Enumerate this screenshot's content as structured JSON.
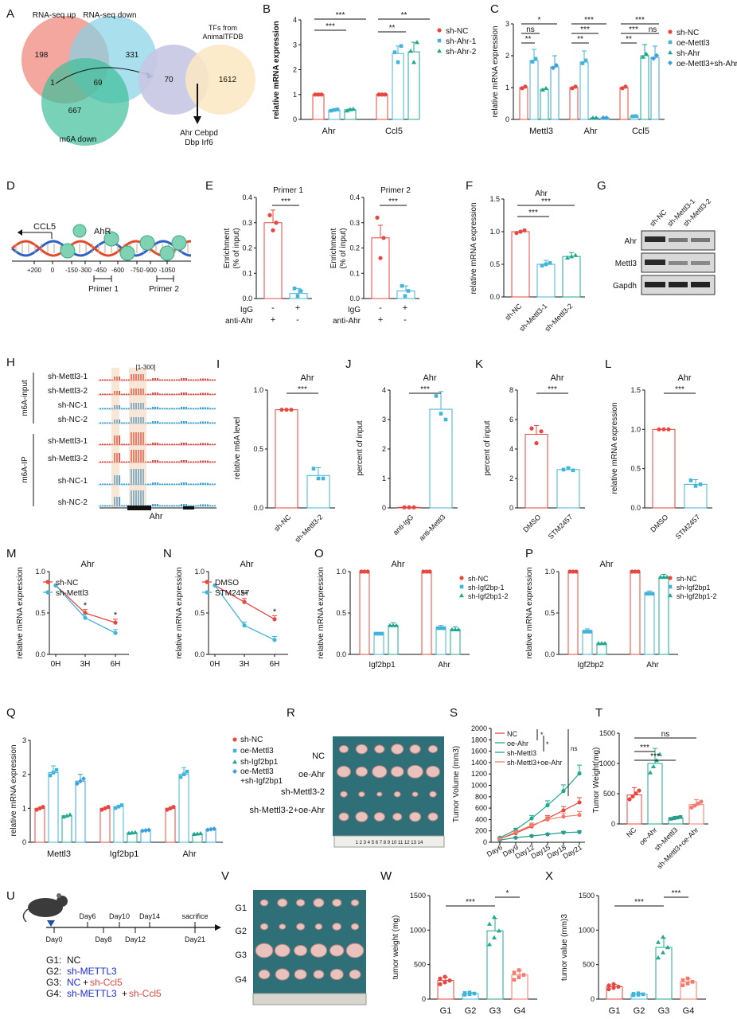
{
  "colors": {
    "red": "#e8473f",
    "cyan": "#41b4d8",
    "teal": "#1ea98f",
    "blue": "#1f2de0",
    "sky": "#3aa0dc",
    "orange": "#f0c7a6"
  },
  "panels": {
    "A": {
      "letter": "A",
      "set_up": "RNA-seq up",
      "set_down": "RNA-seq down",
      "set_m6a": "m6A down",
      "n_up": "198",
      "n_down": "331",
      "n_center": "1",
      "n_overlap": "69",
      "n_m6a": "667",
      "tf_title_1": "TFs from",
      "tf_title_2": "AnimalTFDB",
      "n_tf_overlap": "70",
      "n_tf": "1612",
      "genes_1": "Ahr  Cebpd",
      "genes_2": "Dbp   Irf6"
    },
    "B": {
      "letter": "B",
      "ylabel": "relative mRNA expression",
      "yticks": [
        "0",
        "1",
        "2",
        "3",
        "4"
      ],
      "xcats": [
        "Ahr",
        "Ccl5"
      ],
      "legend": [
        "sh-NC",
        "sh-Ahr-1",
        "sh-Ahr-2"
      ],
      "stars": [
        "***",
        "***",
        "**",
        "**"
      ]
    },
    "C": {
      "letter": "C",
      "ylabel": "relative mRNA expression",
      "yticks": [
        "0",
        "1",
        "2",
        "3"
      ],
      "xcats": [
        "Mettl3",
        "Ahr",
        "Ccl5"
      ],
      "legend": [
        "sh-NC",
        "oe-Mettl3",
        "sh-Ahr",
        "oe-Mettl3+sh-Ahr"
      ],
      "stars": [
        "*",
        "ns",
        "**",
        "***",
        "***",
        "**",
        "***",
        "***",
        "**",
        "ns"
      ]
    },
    "D": {
      "letter": "D",
      "gene": "CCL5",
      "protein": "AhR",
      "ticks": [
        "+200",
        "0",
        "-150",
        "-300",
        "-450",
        "-600",
        "-750",
        "-900",
        "-1050"
      ],
      "primer1": "Primer 1",
      "primer2": "Primer 2"
    },
    "E": {
      "letter": "E",
      "title1": "Primer 1",
      "title2": "Primer 2",
      "ylabel_1": "Enrichment",
      "ylabel_2": "(% of input)",
      "yticks": [
        "0.0",
        "0.1",
        "0.2",
        "0.3",
        "0.4"
      ],
      "row1": "IgG",
      "row2": "anti-Ahr",
      "signs1": [
        "-",
        "+"
      ],
      "signs2": [
        "+",
        "-"
      ],
      "stars": [
        "***",
        "***"
      ]
    },
    "F": {
      "letter": "F",
      "title": "Ahr",
      "ylabel": "relative mRNA expression",
      "yticks": [
        "0.0",
        "0.5",
        "1.0",
        "1.5"
      ],
      "xcats": [
        "sh-NC",
        "sh-Mettl3-1",
        "sh-Mettl3-2"
      ],
      "stars": [
        "***",
        "***"
      ]
    },
    "G": {
      "letter": "G",
      "cols": [
        "sh-NC",
        "sh-Mettl3-1",
        "sh-Mettl3-2"
      ],
      "rows": [
        "Ahr",
        "Mettl3",
        "Gapdh"
      ]
    },
    "H": {
      "letter": "H",
      "group1": "m6A-input",
      "group2": "m6A-IP",
      "tracks": [
        "sh-Mettl3-1",
        "sh-Mettl3-2",
        "sh-NC-1",
        "sh-NC-2",
        "sh-Mettl3-1",
        "sh-Mettl3-2",
        "sh-NC-1",
        "sh-NC-2"
      ],
      "range": "[1-300]",
      "gene": "Ahr"
    },
    "I": {
      "letter": "I",
      "title": "Ahr",
      "ylabel": "relative m6A level",
      "yticks": [
        "0.0",
        "0.5",
        "1.0"
      ],
      "xcats": [
        "sh-NC",
        "sh-Mettl3-2"
      ],
      "stars": "***"
    },
    "J": {
      "letter": "J",
      "title": "Ahr",
      "ylabel": "percent of input",
      "yticks": [
        "0",
        "1",
        "2",
        "3",
        "4"
      ],
      "xcats": [
        "anti-IgG",
        "anti-Mettl3"
      ],
      "stars": "***"
    },
    "K": {
      "letter": "K",
      "title": "Ahr",
      "ylabel": "percent of input",
      "yticks": [
        "0",
        "2",
        "4",
        "6",
        "8"
      ],
      "xcats": [
        "DMSO",
        "STM2457"
      ],
      "stars": "***"
    },
    "L": {
      "letter": "L",
      "title": "Ahr",
      "ylabel": "relative mRNA expression",
      "yticks": [
        "0.0",
        "0.5",
        "1.0",
        "1.5"
      ],
      "xcats": [
        "DMSO",
        "STM2457"
      ],
      "stars": "***"
    },
    "M": {
      "letter": "M",
      "title": "Ahr",
      "ylabel": "relative mRNA expression",
      "yticks": [
        "0.0",
        "0.5",
        "1.0"
      ],
      "xcats": [
        "0H",
        "3H",
        "6H"
      ],
      "legend": [
        "sh-NC",
        "sh-Mettl3"
      ],
      "stars": [
        "*",
        "*"
      ]
    },
    "N": {
      "letter": "N",
      "title": "Ahr",
      "ylabel": "relative mRNA expression",
      "yticks": [
        "0.0",
        "0.5",
        "1.0"
      ],
      "xcats": [
        "0H",
        "3H",
        "6H"
      ],
      "legend": [
        "DMSO",
        "STM2457"
      ],
      "stars": [
        "**",
        "*"
      ]
    },
    "O": {
      "letter": "O",
      "title": "Ahr",
      "ylabel": "relative mRNA expression",
      "yticks": [
        "0.0",
        "0.5",
        "1.0"
      ],
      "xcats": [
        "Igf2bp1",
        "Ahr"
      ],
      "legend": [
        "sh-NC",
        "sh-Igf2bp-1",
        "sh-Igf2bp1-2"
      ]
    },
    "P": {
      "letter": "P",
      "title": "Ahr",
      "ylabel": "relative mRNA expression",
      "yticks": [
        "0.0",
        "0.5",
        "1.0"
      ],
      "xcats": [
        "Igf2bp2",
        "Ahr"
      ],
      "legend": [
        "sh-NC",
        "sh-Igf2bp1",
        "sh-Igf2bp1-2"
      ]
    },
    "Q": {
      "letter": "Q",
      "ylabel": "relative mRNA expression",
      "yticks": [
        "0",
        "1",
        "2",
        "3"
      ],
      "xcats": [
        "Mettl3",
        "Igf2bp1",
        "Ahr"
      ],
      "legend": [
        "sh-NC",
        "oe-Mettl3",
        "sh-Igf2bp1",
        "oe-Mettl3",
        "+sh-Igf2bp1"
      ]
    },
    "R": {
      "letter": "R",
      "rows": [
        "NC",
        "oe-Ahr",
        "sh-Mettl3-2",
        "sh-Mettl3-2+oe-Ahr"
      ],
      "ruler": "1 2 3 4 5 6 7 8 9 10 11 12 13 14"
    },
    "S": {
      "letter": "S",
      "ylabel": "Tumor Volume (mm3)",
      "yticks": [
        "0",
        "200",
        "400",
        "600",
        "800",
        "1000",
        "1200",
        "1400",
        "1600",
        "1800",
        "2000"
      ],
      "xcats": [
        "Day6",
        "Day9",
        "Day12",
        "Day15",
        "Day18",
        "Day21"
      ],
      "legend": [
        "NC",
        "oe-Ahr",
        "sh-Mettl3",
        "sh-Mettl3+oe-Ahr"
      ],
      "stars": [
        "*",
        "*",
        "ns"
      ]
    },
    "T": {
      "letter": "T",
      "ylabel": "Tumor Weight(mg)",
      "yticks": [
        "0",
        "500",
        "1000",
        "1500"
      ],
      "xcats": [
        "NC",
        "oe-Ahr",
        "sh-Mettl3",
        "sh-Mettl3+oe-Ahr"
      ],
      "stars": [
        "ns",
        "***",
        "***"
      ]
    },
    "U": {
      "letter": "U",
      "days_top": [
        "Day6",
        "Day10",
        "Day14",
        "sacrifice"
      ],
      "days_bottom": [
        "Day0",
        "Day8",
        "Day12",
        "Day21"
      ],
      "g1_label": "G1: ",
      "g1": "NC",
      "g2_label": "G2: ",
      "g2": "sh-METTL3",
      "g3_label": "G3: ",
      "g3a": "NC",
      "g3b": "+",
      "g3c": "sh-Ccl5",
      "g4_label": "G4: ",
      "g4a": "sh-METTL3",
      "g4b": "+",
      "g4c": "sh-Ccl5"
    },
    "V": {
      "letter": "V",
      "rows": [
        "G1",
        "G2",
        "G3",
        "G4"
      ]
    },
    "W": {
      "letter": "W",
      "ylabel": "tumor weight (mg)",
      "yticks": [
        "0",
        "500",
        "1000",
        "1500"
      ],
      "xcats": [
        "G1",
        "G2",
        "G3",
        "G4"
      ],
      "stars": [
        "***",
        "*"
      ]
    },
    "X": {
      "letter": "X",
      "ylabel": "tumor value (mm)3",
      "yticks": [
        "0",
        "500",
        "1000",
        "1500"
      ],
      "xcats": [
        "G1",
        "G2",
        "G3",
        "G4"
      ],
      "stars": [
        "***",
        "***"
      ]
    }
  }
}
